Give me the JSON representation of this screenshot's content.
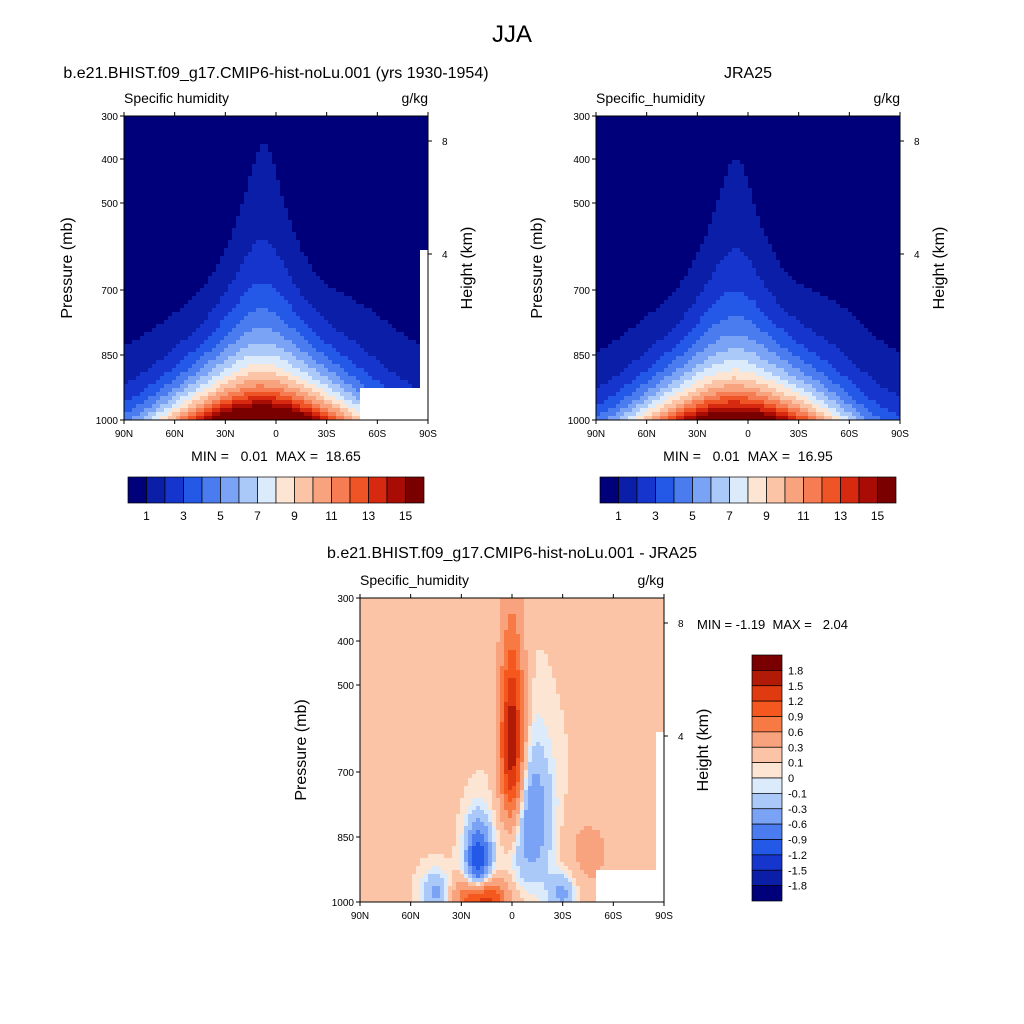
{
  "title": "JJA",
  "chart_data": [
    {
      "type": "heatmap",
      "case_title": "b.e21.BHIST.f09_g17.CMIP6-hist-noLu.001 (yrs 1930-1954)",
      "left_label": "Specific humidity",
      "units": "g/kg",
      "ylabel": "Pressure (mb)",
      "ylabel_right": "Height (km)",
      "pressure_ticks": [
        "300",
        "400",
        "500",
        "700",
        "850",
        "1000"
      ],
      "height_ticks": [
        "8",
        "4"
      ],
      "lat_ticks": [
        "90N",
        "60N",
        "30N",
        "0",
        "30S",
        "60S",
        "90S"
      ],
      "stats": "MIN =   0.01  MAX =  18.65",
      "min": 0.01,
      "max": 18.65,
      "peak_lat": 10,
      "colorbar_labels": [
        "1",
        "3",
        "5",
        "7",
        "9",
        "11",
        "13",
        "15"
      ]
    },
    {
      "type": "heatmap",
      "case_title": "JRA25",
      "left_label": "Specific_humidity",
      "units": "g/kg",
      "ylabel": "Pressure (mb)",
      "ylabel_right": "Height (km)",
      "pressure_ticks": [
        "300",
        "400",
        "500",
        "700",
        "850",
        "1000"
      ],
      "height_ticks": [
        "8",
        "4"
      ],
      "lat_ticks": [
        "90N",
        "60N",
        "30N",
        "0",
        "30S",
        "60S",
        "90S"
      ],
      "stats": "MIN =   0.01  MAX =  16.95",
      "min": 0.01,
      "max": 16.95,
      "peak_lat": 10,
      "colorbar_labels": [
        "1",
        "3",
        "5",
        "7",
        "9",
        "11",
        "13",
        "15"
      ]
    },
    {
      "type": "heatmap",
      "case_title": "b.e21.BHIST.f09_g17.CMIP6-hist-noLu.001 - JRA25",
      "left_label": "Specific_humidity",
      "units": "g/kg",
      "ylabel": "Pressure (mb)",
      "ylabel_right": "Height (km)",
      "pressure_ticks": [
        "300",
        "400",
        "500",
        "700",
        "850",
        "1000"
      ],
      "height_ticks": [
        "8",
        "4"
      ],
      "lat_ticks": [
        "90N",
        "60N",
        "30N",
        "0",
        "30S",
        "60S",
        "90S"
      ],
      "stats": "MIN = -1.19  MAX =   2.04",
      "min": -1.19,
      "max": 2.04,
      "colorbar_labels": [
        "1.8",
        "1.5",
        "1.2",
        "0.9",
        "0.6",
        "0.3",
        "0.1",
        "0",
        "-0.1",
        "-0.3",
        "-0.6",
        "-0.9",
        "-1.2",
        "-1.5",
        "-1.8"
      ]
    }
  ],
  "colors": {
    "sequential": [
      "#00007a",
      "#0a1ea8",
      "#1535cc",
      "#2458e6",
      "#4a7cf0",
      "#7ba3f5",
      "#aac8f8",
      "#dcebfb",
      "#fde5d3",
      "#fcc4a6",
      "#f9a27e",
      "#f67d53",
      "#ef5426",
      "#d6290f",
      "#a80c05",
      "#7a0000"
    ],
    "diverging": [
      "#7a0000",
      "#b11a06",
      "#df3a10",
      "#f4581f",
      "#f77a45",
      "#f9a27e",
      "#fcc4a6",
      "#fde5d3",
      "#dcebfb",
      "#aac8f8",
      "#7ba3f5",
      "#4a7cf0",
      "#2458e6",
      "#1535cc",
      "#0a1ea8",
      "#00007a"
    ]
  }
}
